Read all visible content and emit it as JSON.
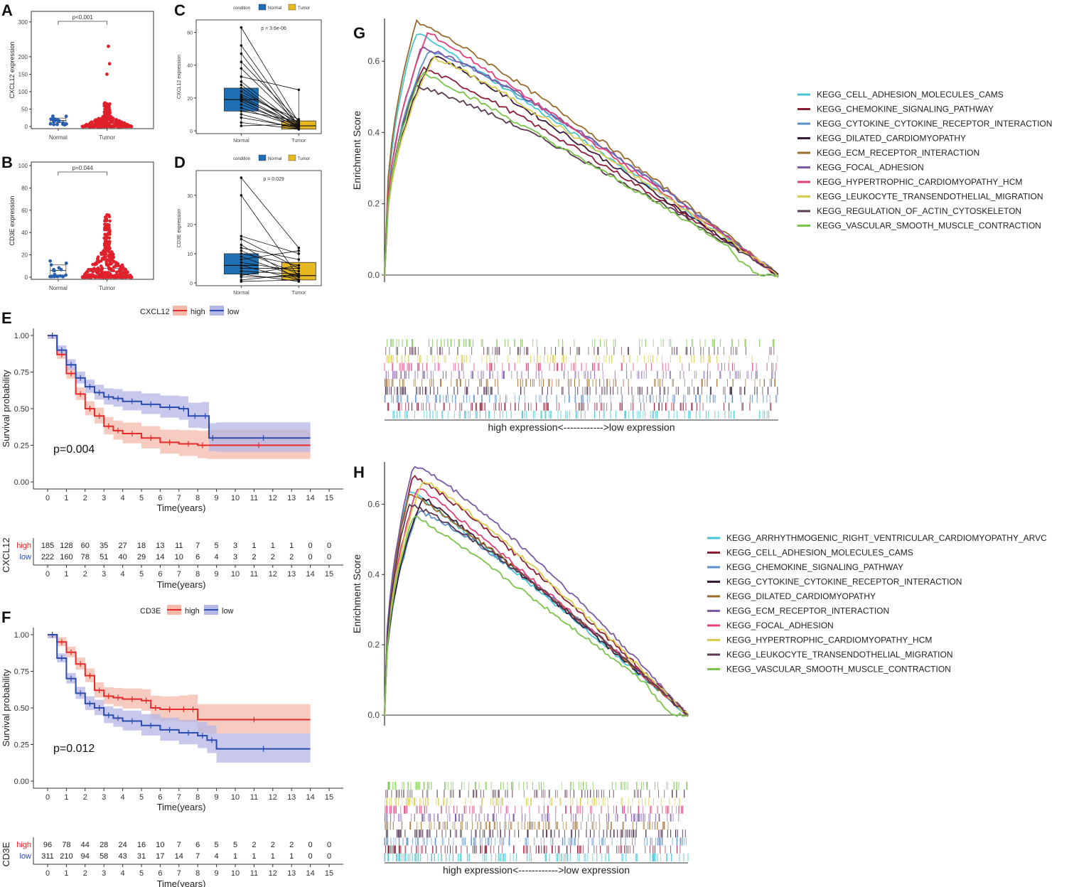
{
  "colors": {
    "normal_box": "#1f6fb5",
    "tumor_box": "#e8b820",
    "normal_dot": "#2a5fb0",
    "tumor_dot": "#e0202a",
    "km_high": "#e52a2a",
    "km_low": "#2a4bb0",
    "km_high_band": "#f4b9a9",
    "km_low_band": "#b4b6e4"
  },
  "chart_data": [
    {
      "panel": "A",
      "type": "scatter",
      "title": "p<0.001",
      "categories": [
        "Normal",
        "Tumor"
      ],
      "ylabel": "CXCL12 expression",
      "ylim": [
        0,
        320
      ],
      "yticks": [
        "0",
        "50",
        "100",
        "150",
        "200",
        "300"
      ],
      "box": [
        {
          "group": "Normal",
          "median": 17,
          "q1": 11,
          "q3": 24
        },
        {
          "group": "Tumor",
          "median": 4,
          "q1": 1,
          "q3": 9
        }
      ],
      "outliers_tumor": [
        55,
        65,
        150,
        180,
        230
      ]
    },
    {
      "panel": "B",
      "type": "scatter",
      "title": "p=0.044",
      "categories": [
        "Normal",
        "Tumor"
      ],
      "ylabel": "CD3E expression",
      "ylim": [
        0,
        100
      ],
      "yticks": [
        "0",
        "20",
        "40",
        "60",
        "80",
        "100"
      ],
      "box": [
        {
          "group": "Normal",
          "median": 6,
          "q1": 2,
          "q3": 11
        },
        {
          "group": "Tumor",
          "median": 5,
          "q1": 2,
          "q3": 8
        }
      ]
    },
    {
      "panel": "C",
      "type": "box",
      "legend_title": "condition",
      "legend": [
        "Normal",
        "Tumor"
      ],
      "pvalue": "p = 3.6e-06",
      "ylabel": "CXCL12 expression",
      "categories": [
        "Normal",
        "Tumor"
      ],
      "ylim": [
        0,
        65
      ],
      "yticks": [
        "0",
        "20",
        "40",
        "60"
      ],
      "box": [
        {
          "group": "Normal",
          "median": 19,
          "q1": 12,
          "q3": 26,
          "min": 3,
          "max": 63
        },
        {
          "group": "Tumor",
          "median": 3,
          "q1": 1,
          "q3": 6,
          "min": 0,
          "max": 25
        }
      ],
      "pairs": [
        [
          63,
          5
        ],
        [
          52,
          3
        ],
        [
          47,
          2
        ],
        [
          42,
          6
        ],
        [
          38,
          4
        ],
        [
          33,
          25
        ],
        [
          30,
          3
        ],
        [
          28,
          1
        ],
        [
          26,
          2
        ],
        [
          24,
          5
        ],
        [
          22,
          7
        ],
        [
          21,
          3
        ],
        [
          20,
          2
        ],
        [
          19,
          4
        ],
        [
          18,
          1
        ],
        [
          16,
          3
        ],
        [
          14,
          2
        ],
        [
          12,
          6
        ],
        [
          10,
          1
        ],
        [
          8,
          2
        ],
        [
          5,
          1
        ],
        [
          3,
          4
        ]
      ]
    },
    {
      "panel": "D",
      "type": "box",
      "legend_title": "condition",
      "legend": [
        "Normal",
        "Tumor"
      ],
      "pvalue": "p = 0.029",
      "ylabel": "CD3E expression",
      "categories": [
        "Normal",
        "Tumor"
      ],
      "ylim": [
        0,
        37
      ],
      "yticks": [
        "0",
        "10",
        "20",
        "30"
      ],
      "box": [
        {
          "group": "Normal",
          "median": 6,
          "q1": 3,
          "q3": 10,
          "min": 0,
          "max": 36
        },
        {
          "group": "Tumor",
          "median": 2.5,
          "q1": 1,
          "q3": 7,
          "min": 0,
          "max": 12
        }
      ],
      "pairs": [
        [
          36,
          12
        ],
        [
          30,
          2
        ],
        [
          16,
          10
        ],
        [
          15,
          5
        ],
        [
          13,
          1
        ],
        [
          12,
          8
        ],
        [
          11,
          3
        ],
        [
          10,
          6
        ],
        [
          9,
          2
        ],
        [
          8,
          11
        ],
        [
          7,
          4
        ],
        [
          6,
          1
        ],
        [
          5,
          5
        ],
        [
          4,
          3
        ],
        [
          3,
          0.5
        ],
        [
          2.5,
          6
        ],
        [
          2,
          2
        ],
        [
          1,
          3
        ],
        [
          0.5,
          1
        ]
      ]
    },
    {
      "panel": "E",
      "type": "line",
      "gene": "CXCL12",
      "legend": [
        "high",
        "low"
      ],
      "pvalue": "p=0.004",
      "xlabel": "Time(years)",
      "ylabel": "Survival probability",
      "xlim": [
        0,
        15
      ],
      "ylim": [
        0,
        1
      ],
      "xticks": [
        "0",
        "1",
        "2",
        "3",
        "4",
        "5",
        "6",
        "7",
        "8",
        "9",
        "10",
        "11",
        "12",
        "13",
        "14",
        "15"
      ],
      "yticks": [
        "0.00",
        "0.25",
        "0.50",
        "0.75",
        "1.00"
      ],
      "series": [
        {
          "name": "high",
          "x": [
            0,
            0.5,
            1,
            1.5,
            2,
            2.5,
            3,
            3.5,
            4,
            5,
            6,
            7,
            8,
            8.5,
            14
          ],
          "y": [
            1,
            0.87,
            0.74,
            0.6,
            0.5,
            0.45,
            0.38,
            0.35,
            0.33,
            0.3,
            0.27,
            0.26,
            0.25,
            0.25,
            0.25
          ]
        },
        {
          "name": "low",
          "x": [
            0,
            0.5,
            1,
            1.5,
            2,
            2.5,
            3,
            3.5,
            4,
            5,
            6,
            7,
            7.5,
            8.2,
            8.6,
            9,
            14
          ],
          "y": [
            1,
            0.9,
            0.8,
            0.71,
            0.65,
            0.61,
            0.58,
            0.57,
            0.55,
            0.53,
            0.51,
            0.5,
            0.45,
            0.45,
            0.3,
            0.3,
            0.3
          ]
        }
      ],
      "risk_title": "CXCL12",
      "risk_xlabel": "Time(years)",
      "risk_table": [
        {
          "name": "high",
          "values": [
            "185",
            "128",
            "60",
            "35",
            "27",
            "18",
            "13",
            "11",
            "7",
            "5",
            "3",
            "1",
            "1",
            "1",
            "0",
            "0"
          ]
        },
        {
          "name": "low",
          "values": [
            "222",
            "160",
            "78",
            "51",
            "40",
            "29",
            "14",
            "10",
            "6",
            "4",
            "3",
            "2",
            "2",
            "2",
            "0",
            "0"
          ]
        }
      ]
    },
    {
      "panel": "F",
      "type": "line",
      "gene": "CD3E",
      "legend": [
        "high",
        "low"
      ],
      "pvalue": "p=0.012",
      "xlabel": "Time(years)",
      "ylabel": "Survival probability",
      "xlim": [
        0,
        15
      ],
      "ylim": [
        0,
        1
      ],
      "xticks": [
        "0",
        "1",
        "2",
        "3",
        "4",
        "5",
        "6",
        "7",
        "8",
        "9",
        "10",
        "11",
        "12",
        "13",
        "14",
        "15"
      ],
      "yticks": [
        "0.00",
        "0.25",
        "0.50",
        "0.75",
        "1.00"
      ],
      "series": [
        {
          "name": "high",
          "x": [
            0,
            0.5,
            1,
            1.5,
            2,
            2.5,
            3,
            3.5,
            4,
            5,
            5.5,
            6,
            7,
            7.5,
            8,
            14
          ],
          "y": [
            1,
            0.95,
            0.88,
            0.8,
            0.72,
            0.62,
            0.58,
            0.57,
            0.56,
            0.55,
            0.5,
            0.49,
            0.49,
            0.49,
            0.42,
            0.42
          ]
        },
        {
          "name": "low",
          "x": [
            0,
            0.5,
            1,
            1.5,
            2,
            2.5,
            3,
            3.5,
            4,
            5,
            6,
            7,
            8,
            8.5,
            9,
            14
          ],
          "y": [
            1,
            0.84,
            0.7,
            0.6,
            0.53,
            0.5,
            0.45,
            0.43,
            0.41,
            0.38,
            0.35,
            0.33,
            0.31,
            0.28,
            0.22,
            0.22
          ]
        }
      ],
      "risk_title": "CD3E",
      "risk_xlabel": "Time(years)",
      "risk_table": [
        {
          "name": "high",
          "values": [
            "96",
            "78",
            "44",
            "28",
            "24",
            "16",
            "10",
            "7",
            "6",
            "5",
            "5",
            "2",
            "2",
            "2",
            "0",
            "0"
          ]
        },
        {
          "name": "low",
          "values": [
            "311",
            "210",
            "94",
            "58",
            "43",
            "31",
            "17",
            "14",
            "7",
            "4",
            "1",
            "1",
            "1",
            "1",
            "0",
            "0"
          ]
        }
      ]
    },
    {
      "panel": "G",
      "type": "line",
      "ylabel": "Enrichment Score",
      "ylim": [
        -0.02,
        0.72
      ],
      "yticks": [
        "0.0",
        "0.2",
        "0.4",
        "0.6"
      ],
      "xaxis_caption": "high expression<------------>low expression",
      "series": [
        {
          "name": "KEGG_CELL_ADHESION_MOLECULES_CAMS",
          "color": "#45c4d4",
          "peak": 0.68
        },
        {
          "name": "KEGG_CHEMOKINE_SIGNALING_PATHWAY",
          "color": "#8a1c36",
          "peak": 0.58
        },
        {
          "name": "KEGG_CYTOKINE_CYTOKINE_RECEPTOR_INTERACTION",
          "color": "#5a8fc8",
          "peak": 0.63
        },
        {
          "name": "KEGG_DILATED_CARDIOMYOPATHY",
          "color": "#3a1a3a",
          "peak": 0.62
        },
        {
          "name": "KEGG_ECM_RECEPTOR_INTERACTION",
          "color": "#9a6a2a",
          "peak": 0.71
        },
        {
          "name": "KEGG_FOCAL_ADHESION",
          "color": "#7a5aa4",
          "peak": 0.64
        },
        {
          "name": "KEGG_HYPERTROPHIC_CARDIOMYOPATHY_HCM",
          "color": "#e0407a",
          "peak": 0.68
        },
        {
          "name": "KEGG_LEUKOCYTE_TRANSENDOTHELIAL_MIGRATION",
          "color": "#d8cc50",
          "peak": 0.61
        },
        {
          "name": "KEGG_REGULATION_OF_ACTIN_CYTOSKELETON",
          "color": "#5a3a50",
          "peak": 0.53
        },
        {
          "name": "KEGG_VASCULAR_SMOOTH_MUSCLE_CONTRACTION",
          "color": "#7ac44a",
          "peak": 0.57
        }
      ]
    },
    {
      "panel": "H",
      "type": "line",
      "ylabel": "Enrichment Score",
      "ylim": [
        -0.03,
        0.72
      ],
      "yticks": [
        "0.0",
        "0.2",
        "0.4",
        "0.6"
      ],
      "xaxis_caption": "high expression<------------>low expression",
      "series": [
        {
          "name": "KEGG_ARRHYTHMOGENIC_RIGHT_VENTRICULAR_CARDIOMYOPATHY_ARVC",
          "color": "#45c4d4",
          "peak": 0.64
        },
        {
          "name": "KEGG_CELL_ADHESION_MOLECULES_CAMS",
          "color": "#8a1c36",
          "peak": 0.68
        },
        {
          "name": "KEGG_CHEMOKINE_SIGNALING_PATHWAY",
          "color": "#5a8fc8",
          "peak": 0.58
        },
        {
          "name": "KEGG_CYTOKINE_CYTOKINE_RECEPTOR_INTERACTION",
          "color": "#3a1a3a",
          "peak": 0.62
        },
        {
          "name": "KEGG_DILATED_CARDIOMYOPATHY",
          "color": "#9a6a2a",
          "peak": 0.63
        },
        {
          "name": "KEGG_ECM_RECEPTOR_INTERACTION",
          "color": "#7a5aa4",
          "peak": 0.71
        },
        {
          "name": "KEGG_FOCAL_ADHESION",
          "color": "#e0407a",
          "peak": 0.65
        },
        {
          "name": "KEGG_HYPERTROPHIC_CARDIOMYOPATHY_HCM",
          "color": "#d8cc50",
          "peak": 0.67
        },
        {
          "name": "KEGG_LEUKOCYTE_TRANSENDOTHELIAL_MIGRATION",
          "color": "#5a3a50",
          "peak": 0.6
        },
        {
          "name": "KEGG_VASCULAR_SMOOTH_MUSCLE_CONTRACTION",
          "color": "#7ac44a",
          "peak": 0.57
        }
      ]
    }
  ]
}
